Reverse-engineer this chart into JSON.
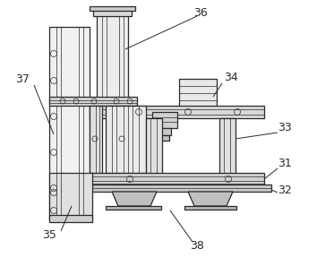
{
  "bg_color": "#ffffff",
  "line_color": "#2a2a2a",
  "label_color": "#2a2a2a",
  "figsize": [
    3.73,
    2.97
  ],
  "dpi": 100
}
